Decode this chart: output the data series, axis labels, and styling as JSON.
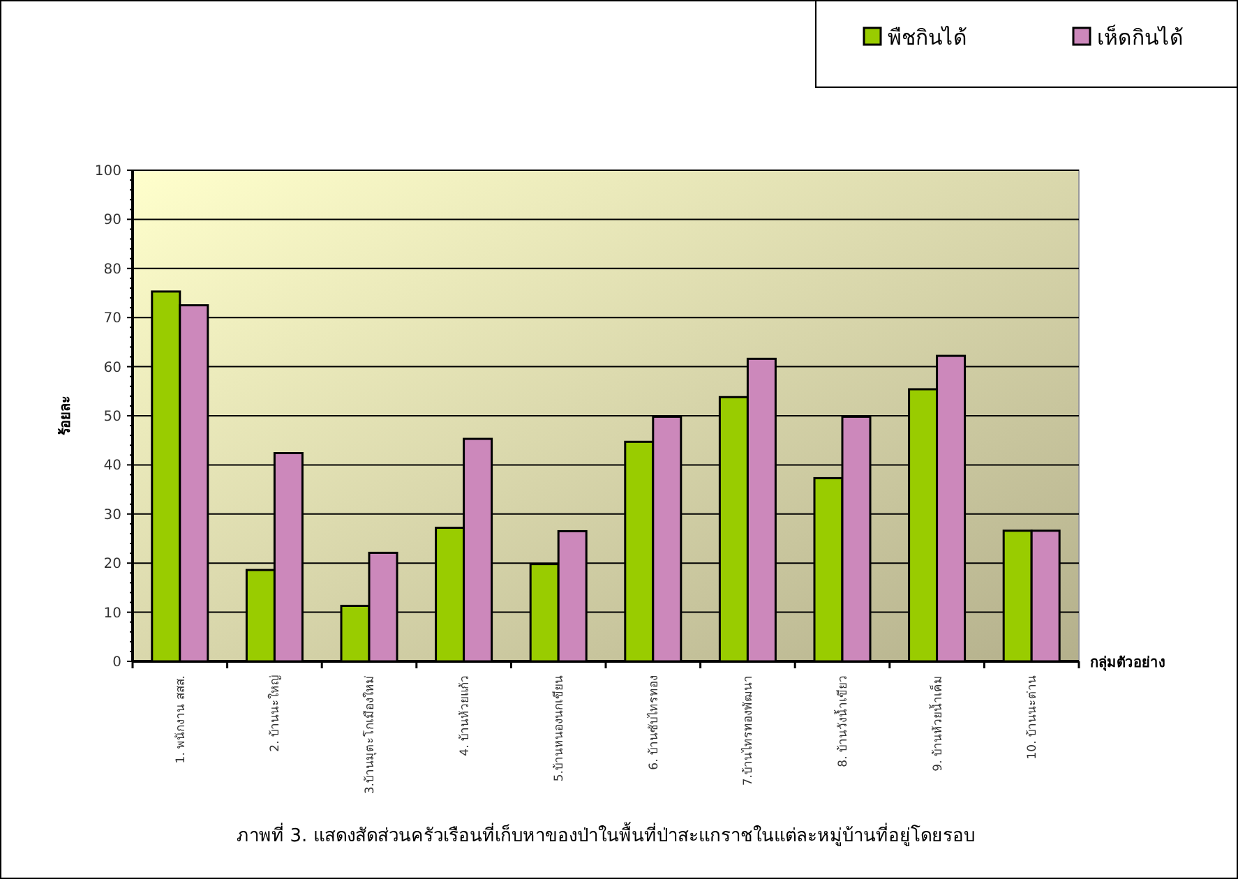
{
  "chart_data": {
    "type": "bar",
    "ylabel": "ร้อยละ",
    "xlabel": "กลุ่มตัวอย่าง",
    "categories": [
      "1. พนักงาน สสส.",
      "2. บ้านนะใหญ่",
      "3.บ้านมุตะโกเมืองใหม่",
      "4. บ้านห้วยแก้ว",
      "5.บ้านหนองนกเขียน",
      "6. บ้านซับไทรทอง",
      "7.บ้านไทรทองพัฒนา",
      "8. บ้านวังน้ำเขียว",
      "9. บ้านห้วยน้ำเค็ม",
      "10. บ้านนะต่าน"
    ],
    "series": [
      {
        "name": "พืชกินได้",
        "color": "#99cc00",
        "values": [
          75.3,
          18.6,
          11.3,
          27.2,
          19.8,
          44.7,
          53.8,
          37.3,
          55.4,
          26.6
        ]
      },
      {
        "name": "เห็ดกินได้",
        "color": "#cc88bb",
        "values": [
          72.5,
          42.4,
          22.1,
          45.3,
          26.5,
          49.8,
          61.6,
          49.8,
          62.2,
          26.6
        ]
      }
    ],
    "ylim": [
      0,
      100
    ],
    "yticks": [
      0,
      10,
      20,
      30,
      40,
      50,
      60,
      70,
      80,
      90,
      100
    ],
    "grid": "y",
    "legend": "top right",
    "annotations": [
      "ภาพที่ 3. แสดงสัดส่วนครัวเรือนที่เก็บหาของป่าในพื้นที่ป่าสะแกราชในแต่ละหมู่บ้านที่อยู่โดยรอบ"
    ]
  }
}
